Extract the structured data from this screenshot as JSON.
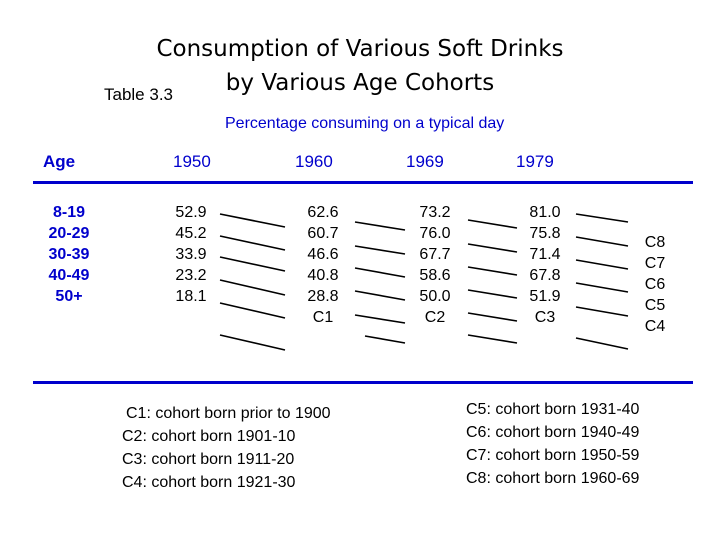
{
  "title": {
    "line1": "Consumption of Various Soft Drinks",
    "line2": "by Various Age Cohorts",
    "table_label": "Table 3.3"
  },
  "subtitle": "Percentage consuming on a typical day",
  "table": {
    "headers": {
      "age": "Age",
      "years": [
        "1950",
        "1960",
        "1969",
        "1979"
      ]
    },
    "age_groups": [
      "8-19",
      "20-29",
      "30-39",
      "40-49",
      "50+"
    ],
    "columns": [
      {
        "year": "1950",
        "values": [
          "52.9",
          "45.2",
          "33.9",
          "23.2",
          "18.1"
        ],
        "cohort": ""
      },
      {
        "year": "1960",
        "values": [
          "62.6",
          "60.7",
          "46.6",
          "40.8",
          "28.8"
        ],
        "cohort": "C1"
      },
      {
        "year": "1969",
        "values": [
          "73.2",
          "76.0",
          "67.7",
          "58.6",
          "50.0"
        ],
        "cohort": "C2"
      },
      {
        "year": "1979",
        "values": [
          "81.0",
          "75.8",
          "71.4",
          "67.8",
          "51.9"
        ],
        "cohort": "C3"
      }
    ],
    "cohort_column": [
      "C8",
      "C7",
      "C6",
      "C5",
      "C4"
    ]
  },
  "legend": {
    "left": [
      "C1: cohort born prior to 1900",
      "C2: cohort born 1901-10",
      "C3: cohort born 1911-20",
      "C4: cohort born 1921-30"
    ],
    "right": [
      "C5: cohort born 1931-40",
      "C6: cohort born 1940-49",
      "C7: cohort born 1950-59",
      "C8: cohort born 1960-69"
    ]
  },
  "colors": {
    "accent": "#0000cc",
    "text": "#000000"
  }
}
